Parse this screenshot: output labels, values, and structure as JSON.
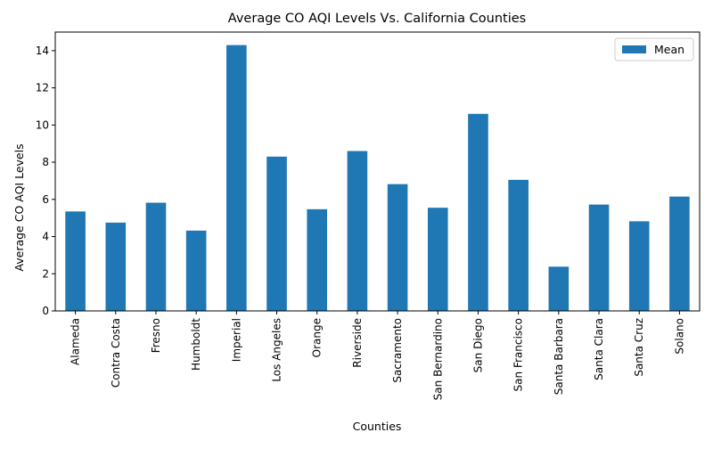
{
  "chart_data": {
    "type": "bar",
    "title": "Average CO AQI Levels Vs. California Counties",
    "xlabel": "Counties",
    "ylabel": "Average CO AQI Levels",
    "categories": [
      "Alameda",
      "Contra Costa",
      "Fresno",
      "Humboldt",
      "Imperial",
      "Los Angeles",
      "Orange",
      "Riverside",
      "Sacramento",
      "San Bernardino",
      "San Diego",
      "San Francisco",
      "Santa Barbara",
      "Santa Clara",
      "Santa Cruz",
      "Solano"
    ],
    "series": [
      {
        "name": "Mean",
        "values": [
          5.35,
          4.75,
          5.82,
          4.32,
          14.3,
          8.3,
          5.47,
          8.6,
          6.82,
          5.55,
          10.6,
          7.05,
          2.38,
          5.72,
          4.82,
          6.15
        ]
      }
    ],
    "ylim": [
      0,
      15
    ],
    "yticks": [
      0,
      2,
      4,
      6,
      8,
      10,
      12,
      14
    ],
    "grid": false,
    "legend": "top-right",
    "colors": {
      "bar": "#1f77b4",
      "axis": "#000000"
    }
  }
}
